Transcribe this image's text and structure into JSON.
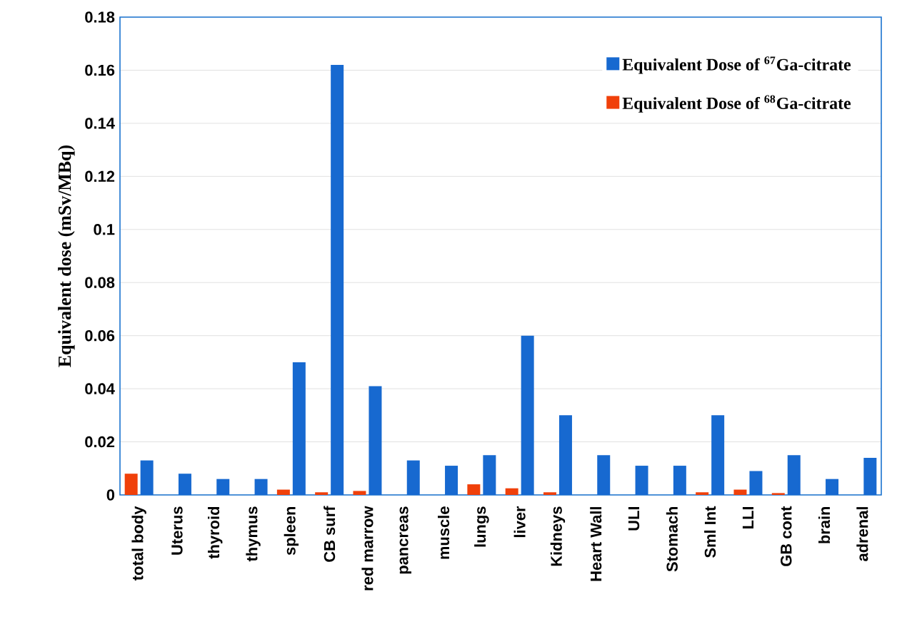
{
  "chart_data": {
    "type": "bar",
    "ylabel": "Equivalent dose (mSv/MBq)",
    "categories": [
      "total body",
      "Uterus",
      "thyroid",
      "thymus",
      "spleen",
      "CB surf",
      "red marrow",
      "pancreas",
      "muscle",
      "lungs",
      "liver",
      "Kidneys",
      "Heart Wall",
      "ULI",
      "Stomach",
      "Sml Int",
      "LLI",
      "GB cont",
      "brain",
      "adrenal"
    ],
    "series": [
      {
        "name": "Equivalent Dose of $^{68}$Ga-citrate",
        "color": "#f0400a",
        "values": [
          0.008,
          null,
          null,
          null,
          0.002,
          0.001,
          0.0015,
          null,
          null,
          0.004,
          0.0025,
          0.001,
          null,
          null,
          null,
          0.001,
          0.002,
          0.0007,
          null,
          null
        ]
      },
      {
        "name": "Equivalent Dose of $^{67}$Ga-citrate",
        "color": "#1769d0",
        "values": [
          0.013,
          0.008,
          0.006,
          0.006,
          0.05,
          0.162,
          0.041,
          0.013,
          0.011,
          0.015,
          0.06,
          0.03,
          0.015,
          0.011,
          0.011,
          0.03,
          0.009,
          0.015,
          0.006,
          0.014
        ]
      }
    ],
    "ylim": [
      0,
      0.18
    ],
    "yticks": [
      0,
      0.02,
      0.04,
      0.06,
      0.08,
      0.1,
      0.12,
      0.14,
      0.16,
      0.18
    ],
    "grid": "y",
    "legend": "top right"
  }
}
